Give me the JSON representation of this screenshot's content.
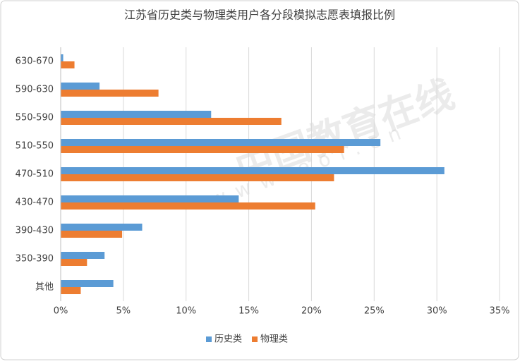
{
  "chart_data": {
    "type": "hbar",
    "title": "江苏省历史类与物理类用户各分段模拟志愿表填报比例",
    "categories": [
      "630-670",
      "590-630",
      "550-590",
      "510-550",
      "470-510",
      "430-470",
      "390-430",
      "350-390",
      "其他"
    ],
    "series": [
      {
        "name": "历史类",
        "color": "#5b9bd5",
        "values": [
          0.2,
          3.1,
          12.0,
          25.5,
          30.6,
          14.2,
          6.5,
          3.5,
          4.2
        ]
      },
      {
        "name": "物理类",
        "color": "#ed7d31",
        "values": [
          1.1,
          7.8,
          17.6,
          22.6,
          21.8,
          20.3,
          4.9,
          2.1,
          1.6
        ]
      }
    ],
    "xlim": [
      0,
      35
    ],
    "xticks": [
      {
        "value": 0,
        "label": "0%"
      },
      {
        "value": 5,
        "label": "5%"
      },
      {
        "value": 10,
        "label": "10%"
      },
      {
        "value": 15,
        "label": "15%"
      },
      {
        "value": 20,
        "label": "20%"
      },
      {
        "value": 25,
        "label": "25%"
      },
      {
        "value": 30,
        "label": "30%"
      },
      {
        "value": 35,
        "label": "35%"
      }
    ],
    "grid": true,
    "legend": "bottom",
    "watermark": [
      "中国教育在线",
      "www.eol.cn"
    ]
  }
}
